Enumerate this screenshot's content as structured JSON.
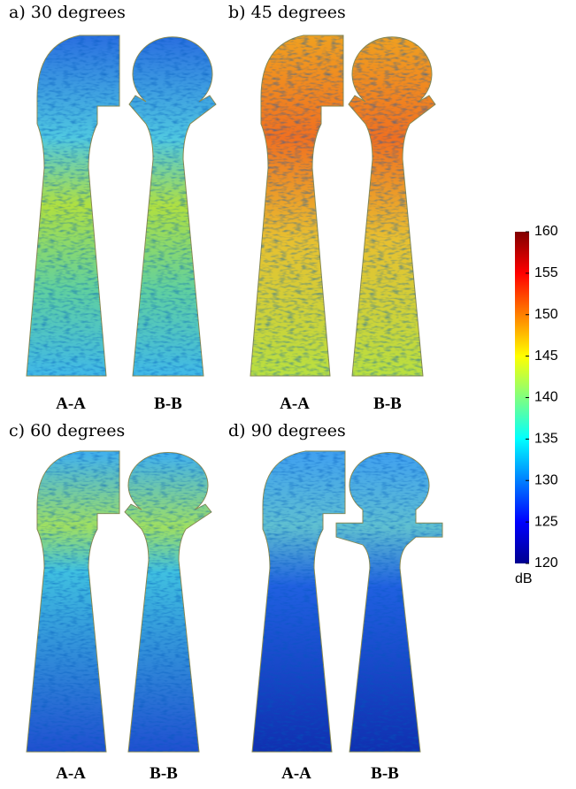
{
  "panels": [
    {
      "label": "a) 30 degrees",
      "sections": [
        "A-A",
        "B-B"
      ]
    },
    {
      "label": "b) 45 degrees",
      "sections": [
        "A-A",
        "B-B"
      ]
    },
    {
      "label": "c) 60 degrees",
      "sections": [
        "A-A",
        "B-B"
      ]
    },
    {
      "label": "d) 90 degrees",
      "sections": [
        "A-A",
        "B-B"
      ]
    }
  ],
  "colorbar": {
    "ylim": [
      120,
      160
    ],
    "yticks": [
      120,
      125,
      130,
      135,
      140,
      145,
      150,
      155,
      160
    ],
    "unit": "dB"
  }
}
